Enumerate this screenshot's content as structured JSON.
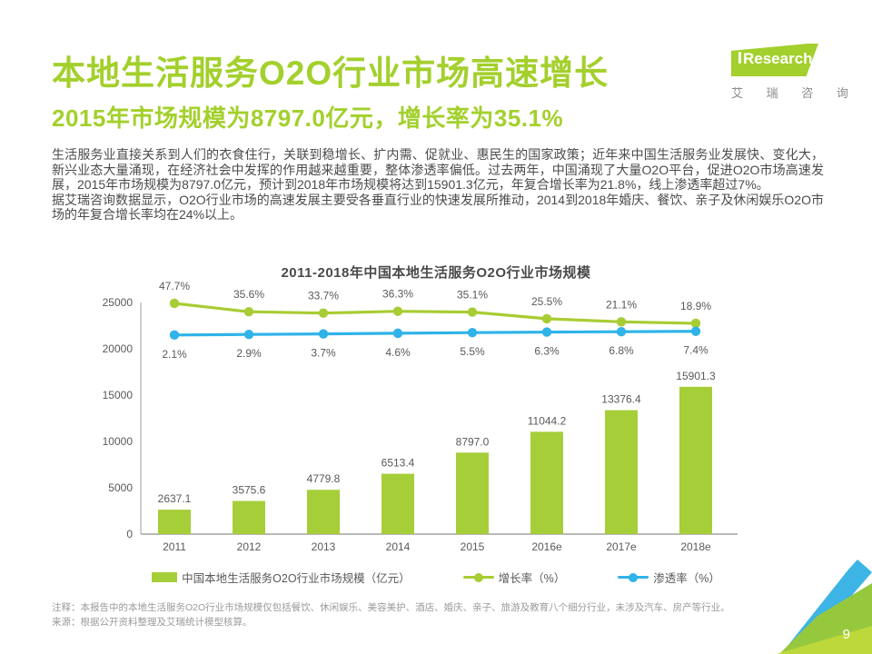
{
  "header": {
    "title": "本地生活服务O2O行业市场高速增长",
    "subtitle": "2015年市场规模为8797.0亿元，增长率为35.1%",
    "logo": {
      "i": "i",
      "research": "Research",
      "cn": "艾 瑞 咨 询"
    }
  },
  "intro": {
    "para1": "生活服务业直接关系到人们的衣食住行，关联到稳增长、扩内需、促就业、惠民生的国家政策；近年来中国生活服务业发展快、变化大，新兴业态大量涌现，在经济社会中发挥的作用越来越重要，整体渗透率偏低。过去两年，中国涌现了大量O2O平台，促进O2O市场高速发展，2015年市场规模为8797.0亿元，预计到2018年市场规模将达到15901.3亿元，年复合增长率为21.8%，线上渗透率超过7%。",
    "para2": "据艾瑞咨询数据显示，O2O行业市场的高速发展主要受各垂直行业的快速发展所推动，2014到2018年婚庆、餐饮、亲子及休闲娱乐O2O市场的年复合增长率均在24%以上。"
  },
  "chart_data": {
    "type": "bar",
    "title": "2011-2018年中国本地生活服务O2O行业市场规模",
    "categories": [
      "2011",
      "2012",
      "2013",
      "2014",
      "2015",
      "2016e",
      "2017e",
      "2018e"
    ],
    "series": [
      {
        "name": "中国本地生活服务O2O行业市场规模（亿元）",
        "type": "bar",
        "color": "#a5ce39",
        "values": [
          2637.1,
          3575.6,
          4779.8,
          6513.4,
          8797.0,
          11044.2,
          13376.4,
          15901.3
        ]
      },
      {
        "name": "增长率（%）",
        "type": "line",
        "color": "#a8cc33",
        "values": [
          47.7,
          35.6,
          33.7,
          36.3,
          35.1,
          25.5,
          21.1,
          18.9
        ]
      },
      {
        "name": "渗透率（%）",
        "type": "line",
        "color": "#2fb3e8",
        "values": [
          2.1,
          2.9,
          3.7,
          4.6,
          5.5,
          6.3,
          6.8,
          7.4
        ]
      }
    ],
    "ylabel": "",
    "xlabel": "",
    "ylim": [
      0,
      25000
    ],
    "yticks": [
      0,
      5000,
      10000,
      15000,
      20000,
      25000
    ],
    "grid": false,
    "legend_position": "bottom"
  },
  "footer": {
    "note": "注释：本报告中的本地生活服务O2O行业市场规模仅包括餐饮、休闲娱乐、美容美护、酒店、婚庆、亲子、旅游及教育八个细分行业，未涉及汽车、房产等行业。",
    "source": "来源：根据公开资料整理及艾瑞统计模型核算。",
    "page_number": "9"
  },
  "colors": {
    "accent_green": "#a3d02c",
    "bar_green": "#a5ce39",
    "line_green": "#a8cc33",
    "line_blue": "#2fb3e8",
    "logo_blue": "#2e9fd6",
    "deco_blue": "#3cb4e6",
    "deco_green_mid": "#96c83d",
    "deco_green_light": "#c3da3a"
  }
}
